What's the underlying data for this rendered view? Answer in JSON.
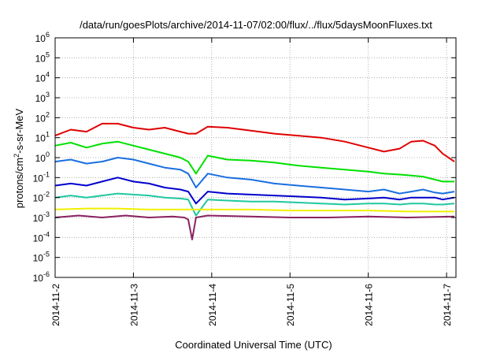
{
  "chart_data": {
    "type": "line",
    "title": "/data/run/goesPlots/archive/2014-11-07/02:00/flux/../flux/5daysMoonFluxes.txt",
    "xlabel": "Coordinated Universal Time (UTC)",
    "ylabel": {
      "base": "protons/cm",
      "sup": "2",
      "rest": "-s-sr-MeV"
    },
    "yscale": "log",
    "ylim_exp": [
      -6,
      6
    ],
    "y_tick_exponents": [
      -6,
      -5,
      -4,
      -3,
      -2,
      -1,
      0,
      1,
      2,
      3,
      4,
      5,
      6
    ],
    "xlim_days": [
      0,
      5.12
    ],
    "x_ticks": [
      {
        "label": "2014-11-2",
        "day": 0
      },
      {
        "label": "2014-11-3",
        "day": 1
      },
      {
        "label": "2014-11-4",
        "day": 2
      },
      {
        "label": "2014-11-5",
        "day": 3
      },
      {
        "label": "2014-11-6",
        "day": 4
      },
      {
        "label": "2014-11-7",
        "day": 5
      }
    ],
    "grid": true,
    "series": [
      {
        "color": "#e00000",
        "day": [
          0,
          0.2,
          0.4,
          0.6,
          0.8,
          1.0,
          1.2,
          1.4,
          1.6,
          1.7,
          1.8,
          1.95,
          2.2,
          2.5,
          2.8,
          3.1,
          3.4,
          3.7,
          4.0,
          4.2,
          4.4,
          4.55,
          4.7,
          4.85,
          4.95,
          5.1
        ],
        "log10": [
          1.1,
          1.4,
          1.3,
          1.7,
          1.7,
          1.5,
          1.4,
          1.5,
          1.3,
          1.2,
          1.2,
          1.55,
          1.5,
          1.35,
          1.2,
          1.1,
          1.0,
          0.8,
          0.5,
          0.3,
          0.45,
          0.8,
          0.85,
          0.6,
          0.2,
          -0.2
        ]
      },
      {
        "color": "#00e000",
        "day": [
          0,
          0.2,
          0.4,
          0.6,
          0.8,
          1.0,
          1.2,
          1.4,
          1.6,
          1.7,
          1.8,
          1.95,
          2.2,
          2.5,
          2.8,
          3.1,
          3.4,
          3.7,
          4.0,
          4.2,
          4.4,
          4.55,
          4.7,
          4.85,
          4.95,
          5.1
        ],
        "log10": [
          0.6,
          0.75,
          0.5,
          0.7,
          0.8,
          0.6,
          0.4,
          0.2,
          0.0,
          -0.2,
          -0.8,
          0.1,
          -0.1,
          -0.15,
          -0.25,
          -0.4,
          -0.5,
          -0.6,
          -0.7,
          -0.8,
          -0.85,
          -0.9,
          -0.95,
          -1.1,
          -1.2,
          -1.2
        ]
      },
      {
        "color": "#1a6fe0",
        "day": [
          0,
          0.2,
          0.4,
          0.6,
          0.8,
          1.0,
          1.2,
          1.4,
          1.6,
          1.7,
          1.8,
          1.95,
          2.2,
          2.5,
          2.8,
          3.1,
          3.4,
          3.7,
          4.0,
          4.2,
          4.4,
          4.55,
          4.7,
          4.85,
          4.95,
          5.1
        ],
        "log10": [
          -0.2,
          -0.1,
          -0.3,
          -0.2,
          0.0,
          -0.1,
          -0.3,
          -0.5,
          -0.6,
          -0.8,
          -1.5,
          -0.8,
          -1.0,
          -1.1,
          -1.3,
          -1.4,
          -1.5,
          -1.6,
          -1.7,
          -1.6,
          -1.8,
          -1.7,
          -1.6,
          -1.75,
          -1.8,
          -1.7
        ]
      },
      {
        "color": "#0000cc",
        "day": [
          0,
          0.2,
          0.4,
          0.6,
          0.8,
          1.0,
          1.2,
          1.4,
          1.6,
          1.7,
          1.8,
          1.95,
          2.2,
          2.5,
          2.8,
          3.1,
          3.4,
          3.7,
          4.0,
          4.2,
          4.4,
          4.55,
          4.7,
          4.85,
          4.95,
          5.1
        ],
        "log10": [
          -1.4,
          -1.3,
          -1.4,
          -1.2,
          -1.0,
          -1.2,
          -1.3,
          -1.5,
          -1.6,
          -1.7,
          -2.3,
          -1.7,
          -1.8,
          -1.85,
          -1.9,
          -1.95,
          -2.0,
          -2.1,
          -2.05,
          -2.0,
          -2.1,
          -2.0,
          -2.0,
          -2.0,
          -2.1,
          -2.0
        ]
      },
      {
        "color": "#20c8a0",
        "day": [
          0,
          0.2,
          0.4,
          0.6,
          0.8,
          1.0,
          1.2,
          1.4,
          1.6,
          1.7,
          1.8,
          1.95,
          2.2,
          2.5,
          2.8,
          3.1,
          3.4,
          3.7,
          4.0,
          4.2,
          4.4,
          4.55,
          4.7,
          4.85,
          4.95,
          5.1
        ],
        "log10": [
          -2.0,
          -1.9,
          -2.0,
          -1.9,
          -1.8,
          -1.85,
          -1.9,
          -2.0,
          -2.05,
          -2.1,
          -2.9,
          -2.1,
          -2.15,
          -2.2,
          -2.2,
          -2.25,
          -2.3,
          -2.35,
          -2.3,
          -2.3,
          -2.35,
          -2.3,
          -2.3,
          -2.35,
          -2.35,
          -2.3
        ]
      },
      {
        "color": "#f0f000",
        "day": [
          0,
          0.4,
          0.8,
          1.2,
          1.6,
          1.7,
          1.95,
          2.5,
          3.0,
          3.5,
          4.0,
          4.5,
          5.1
        ],
        "log10": [
          -2.6,
          -2.55,
          -2.55,
          -2.6,
          -2.6,
          -2.6,
          -2.6,
          -2.6,
          -2.65,
          -2.65,
          -2.65,
          -2.7,
          -2.7
        ]
      },
      {
        "color": "#8a2060",
        "day": [
          0,
          0.3,
          0.6,
          0.9,
          1.2,
          1.5,
          1.65,
          1.7,
          1.75,
          1.8,
          1.95,
          2.5,
          3.0,
          3.5,
          4.0,
          4.5,
          5.1
        ],
        "log10": [
          -3.0,
          -2.9,
          -3.0,
          -2.9,
          -3.0,
          -2.95,
          -3.0,
          -3.1,
          -4.1,
          -3.0,
          -2.9,
          -2.95,
          -3.0,
          -3.0,
          -2.95,
          -3.0,
          -2.95
        ]
      }
    ]
  }
}
